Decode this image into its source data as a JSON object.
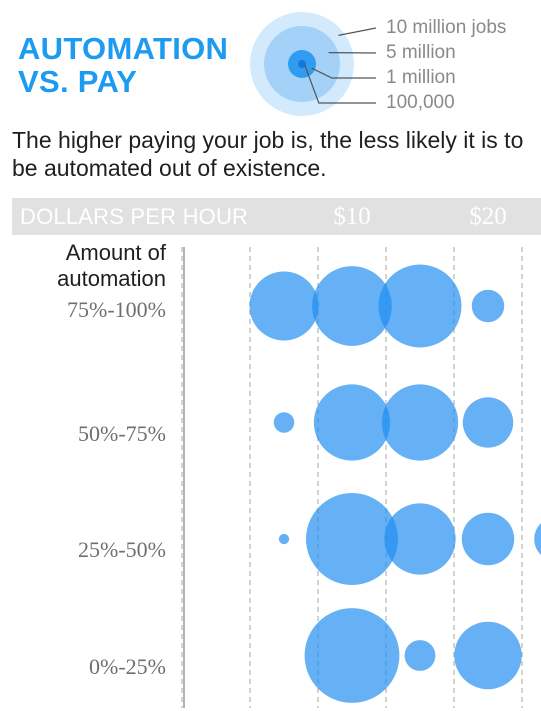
{
  "header": {
    "title_line1": "AUTOMATION",
    "title_line2": "VS. PAY",
    "subtitle": "The higher paying your job is, the less likely it is to be automated out of existence."
  },
  "legend": {
    "items": [
      {
        "label": "10 million jobs",
        "jobs": 10000000
      },
      {
        "label": "5 million",
        "jobs": 5000000
      },
      {
        "label": "1 million",
        "jobs": 1000000
      },
      {
        "label": "100,000",
        "jobs": 100000
      }
    ]
  },
  "colors": {
    "title": "#1d9bf0",
    "bubble": "#1d8cf0",
    "legend_outer": "#cfe6fb",
    "header_bar": "#e1e1e1",
    "gridline": "#b5b5b5"
  },
  "chart_data": {
    "type": "scatter",
    "encoding": "bubble",
    "x_axis_label": "DOLLARS PER HOUR",
    "x_ticks": [
      {
        "value": 10,
        "label": "$10"
      },
      {
        "value": 20,
        "label": "$20"
      }
    ],
    "xlim": [
      0,
      25
    ],
    "y_axis_label": "Amount of automation",
    "categories": [
      "75%-100%",
      "50%-75%",
      "25%-50%",
      "0%-25%"
    ],
    "series": [
      {
        "category": "75%-100%",
        "points": [
          {
            "x": 5,
            "jobs": 4500000
          },
          {
            "x": 10,
            "jobs": 6000000
          },
          {
            "x": 15,
            "jobs": 6500000
          },
          {
            "x": 20,
            "jobs": 1000000
          }
        ]
      },
      {
        "category": "50%-75%",
        "points": [
          {
            "x": 5,
            "jobs": 400000
          },
          {
            "x": 10,
            "jobs": 5500000
          },
          {
            "x": 15,
            "jobs": 5500000
          },
          {
            "x": 20,
            "jobs": 2400000
          }
        ]
      },
      {
        "category": "25%-50%",
        "points": [
          {
            "x": 5,
            "jobs": 100000
          },
          {
            "x": 10,
            "jobs": 8000000
          },
          {
            "x": 15,
            "jobs": 4800000
          },
          {
            "x": 20,
            "jobs": 2600000
          },
          {
            "x": 25,
            "jobs": 1800000
          }
        ]
      },
      {
        "category": "0%-25%",
        "points": [
          {
            "x": 10,
            "jobs": 8500000
          },
          {
            "x": 15,
            "jobs": 900000
          },
          {
            "x": 20,
            "jobs": 4300000
          }
        ]
      }
    ]
  }
}
